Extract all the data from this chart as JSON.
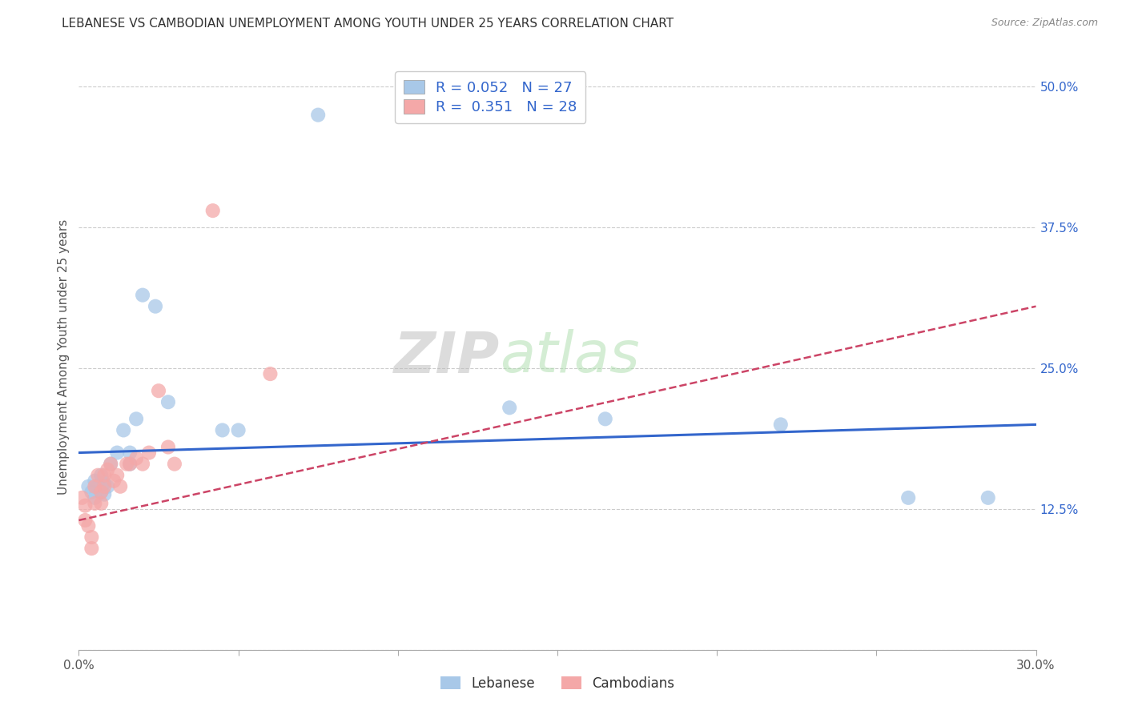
{
  "title": "LEBANESE VS CAMBODIAN UNEMPLOYMENT AMONG YOUTH UNDER 25 YEARS CORRELATION CHART",
  "source": "Source: ZipAtlas.com",
  "ylabel": "Unemployment Among Youth under 25 years",
  "xlim": [
    0.0,
    0.3
  ],
  "ylim": [
    0.0,
    0.52
  ],
  "xticks": [
    0.0,
    0.05,
    0.1,
    0.15,
    0.2,
    0.25,
    0.3
  ],
  "xtick_labels": [
    "0.0%",
    "",
    "",
    "",
    "",
    "",
    "30.0%"
  ],
  "ytick_labels_right": [
    "50.0%",
    "37.5%",
    "25.0%",
    "12.5%",
    ""
  ],
  "yticks_right": [
    0.5,
    0.375,
    0.25,
    0.125,
    0.0
  ],
  "legend_label1": "Lebanese",
  "legend_label2": "Cambodians",
  "R1": "0.052",
  "N1": "27",
  "R2": "0.351",
  "N2": "28",
  "blue_color": "#a8c8e8",
  "pink_color": "#f4a8a8",
  "blue_line_color": "#3366cc",
  "pink_line_color": "#cc4466",
  "legend_text_color": "#3366cc",
  "title_color": "#333333",
  "watermark_zip": "ZIP",
  "watermark_atlas": "atlas",
  "lebanese_x": [
    0.003,
    0.004,
    0.005,
    0.005,
    0.006,
    0.007,
    0.007,
    0.008,
    0.008,
    0.009,
    0.01,
    0.012,
    0.014,
    0.016,
    0.016,
    0.018,
    0.02,
    0.024,
    0.028,
    0.045,
    0.05,
    0.075,
    0.135,
    0.165,
    0.22,
    0.26,
    0.285
  ],
  "lebanese_y": [
    0.145,
    0.14,
    0.15,
    0.135,
    0.145,
    0.155,
    0.14,
    0.148,
    0.138,
    0.145,
    0.165,
    0.175,
    0.195,
    0.175,
    0.165,
    0.205,
    0.315,
    0.305,
    0.22,
    0.195,
    0.195,
    0.475,
    0.215,
    0.205,
    0.2,
    0.135,
    0.135
  ],
  "cambodian_x": [
    0.001,
    0.002,
    0.002,
    0.003,
    0.004,
    0.004,
    0.005,
    0.005,
    0.006,
    0.007,
    0.007,
    0.008,
    0.008,
    0.009,
    0.01,
    0.011,
    0.012,
    0.013,
    0.015,
    0.016,
    0.018,
    0.02,
    0.022,
    0.025,
    0.028,
    0.03,
    0.042,
    0.06
  ],
  "cambodian_y": [
    0.135,
    0.128,
    0.115,
    0.11,
    0.1,
    0.09,
    0.13,
    0.145,
    0.155,
    0.14,
    0.13,
    0.155,
    0.145,
    0.16,
    0.165,
    0.15,
    0.155,
    0.145,
    0.165,
    0.165,
    0.17,
    0.165,
    0.175,
    0.23,
    0.18,
    0.165,
    0.39,
    0.245
  ],
  "lebanese_trendline_x": [
    0.0,
    0.3
  ],
  "lebanese_trendline_y": [
    0.175,
    0.2
  ],
  "cambodian_trendline_x": [
    0.0,
    0.3
  ],
  "cambodian_trendline_y": [
    0.115,
    0.305
  ]
}
